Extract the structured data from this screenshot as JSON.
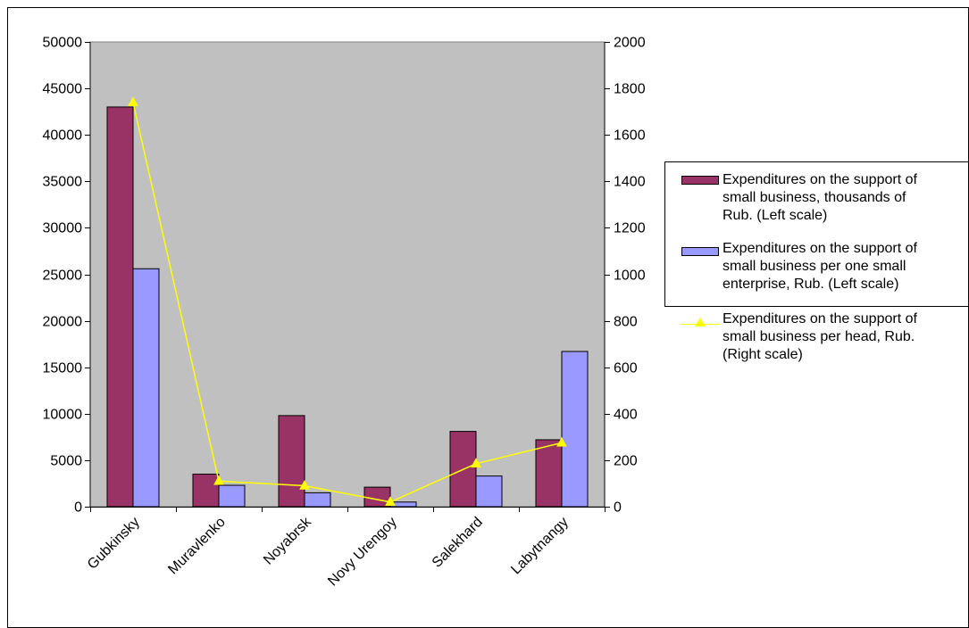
{
  "chart_data": {
    "type": "bar",
    "categories": [
      "Gubkinsky",
      "Muravlenko",
      "Noyabrsk",
      "Novy Urengoy",
      "Salekhard",
      "Labytnangy"
    ],
    "series": [
      {
        "name": "Expenditures on the support of small business, thousands of Rub. (Left scale)",
        "type": "bar",
        "axis": "left",
        "color": "#993366",
        "values": [
          43000,
          3500,
          9800,
          2100,
          8100,
          7200
        ]
      },
      {
        "name": "Expenditures on the support of small business per one small enterprise, Rub. (Left scale)",
        "type": "bar",
        "axis": "left",
        "color": "#9999ff",
        "values": [
          25600,
          2300,
          1500,
          500,
          3300,
          16700
        ]
      },
      {
        "name": "Expenditures on the support of small business per head, Rub. (Right scale)",
        "type": "line",
        "axis": "right",
        "color": "#ffff00",
        "marker": "triangle",
        "values": [
          1740,
          110,
          90,
          20,
          185,
          275
        ]
      }
    ],
    "left_axis": {
      "ylim": [
        0,
        50000
      ],
      "ticks": [
        "0",
        "5000",
        "10000",
        "15000",
        "20000",
        "25000",
        "30000",
        "35000",
        "40000",
        "45000",
        "50000"
      ]
    },
    "right_axis": {
      "ylim": [
        0,
        2000
      ],
      "ticks": [
        "0",
        "200",
        "400",
        "600",
        "800",
        "1000",
        "1200",
        "1400",
        "1600",
        "1800",
        "2000"
      ]
    },
    "plot_background": "#c0c0c0",
    "grid": false,
    "legend_position": "right"
  },
  "legend": {
    "items": [
      {
        "text": "Expenditures on the support of\nsmall business, thousands of\nRub. (Left scale)",
        "icon": "bar-swatch",
        "color": "#993366"
      },
      {
        "text": "Expenditures on the support of\nsmall business per one small\nenterprise, Rub. (Left scale)",
        "icon": "bar-swatch",
        "color": "#9999ff"
      },
      {
        "text": "Expenditures on the support of\nsmall business per head, Rub.\n(Right scale)",
        "icon": "line-triangle-marker",
        "color": "#ffff00"
      }
    ]
  }
}
